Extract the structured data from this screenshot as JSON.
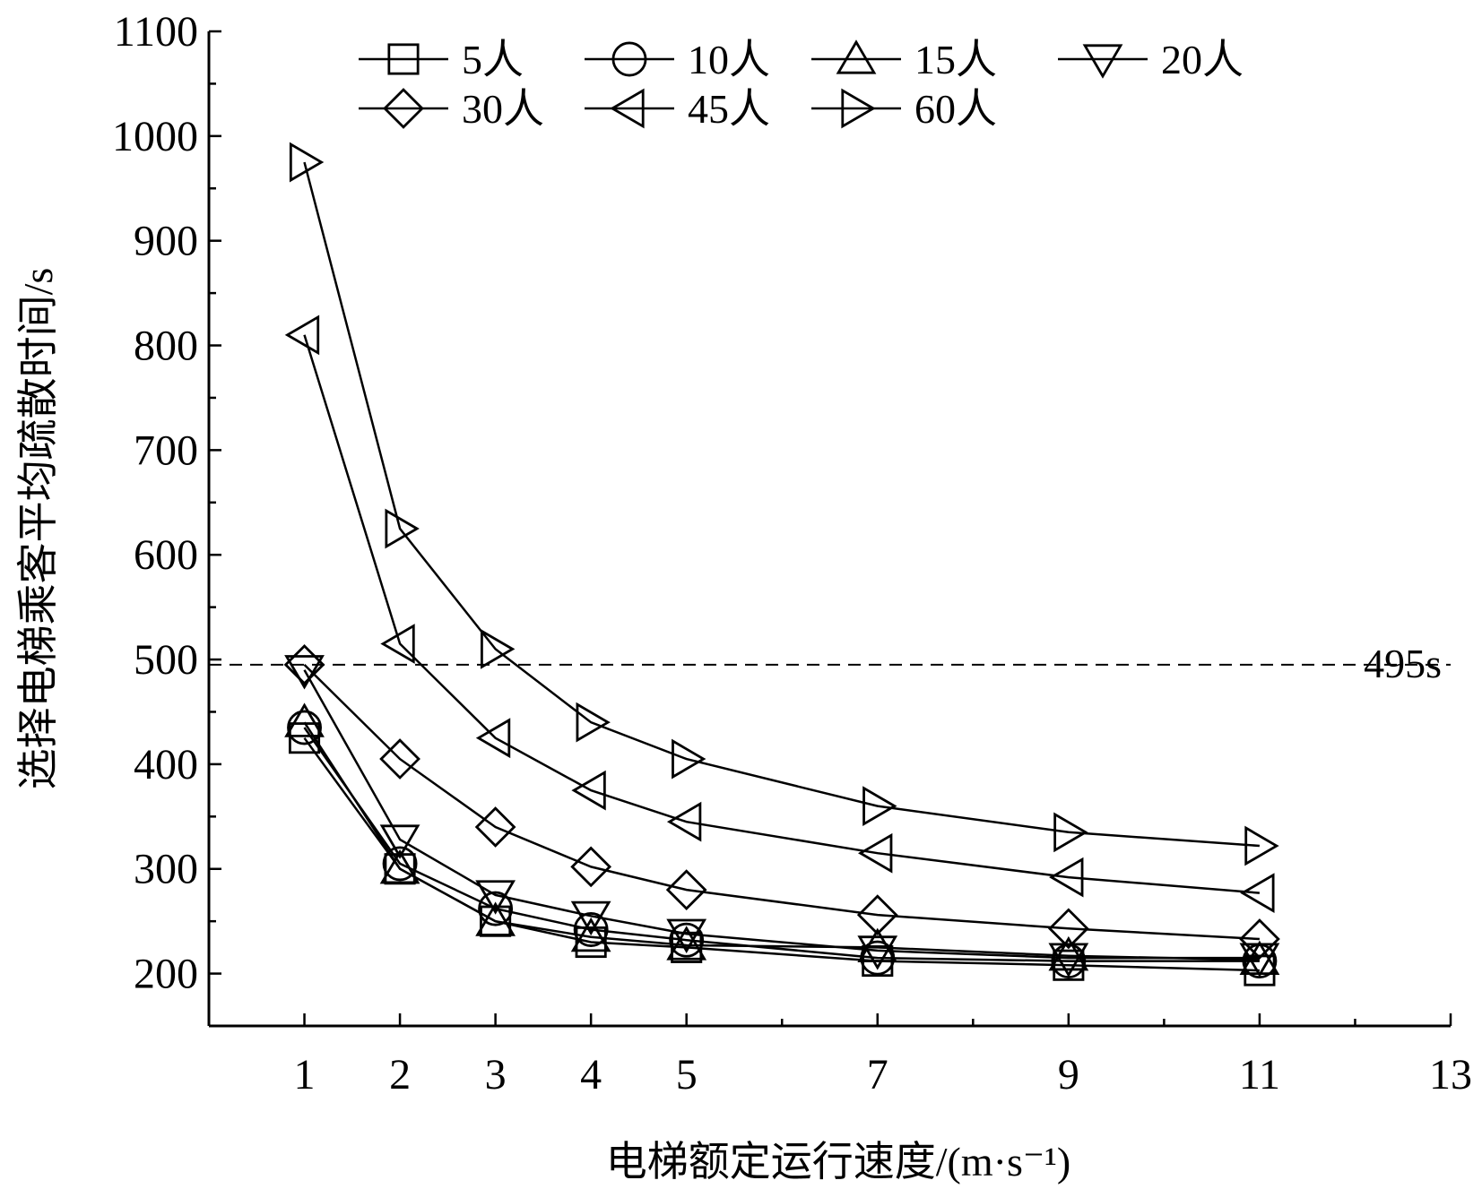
{
  "chart_data": {
    "type": "line",
    "title": "",
    "xlabel": "电梯额定运行速度/(m·s⁻¹)",
    "ylabel": "选择电梯乘客平均疏散时间/s",
    "xlim": [
      0,
      13
    ],
    "ylim": [
      150,
      1100
    ],
    "x_ticks": [
      1,
      2,
      3,
      4,
      5,
      7,
      9,
      11,
      13
    ],
    "y_ticks": [
      200,
      300,
      400,
      500,
      600,
      700,
      800,
      900,
      1000,
      1100
    ],
    "x": [
      1,
      2,
      3,
      4,
      5,
      7,
      9,
      11
    ],
    "grid": false,
    "legend_position": "top",
    "reference_line": {
      "y": 495,
      "label": "495s",
      "style": "dashed"
    },
    "series": [
      {
        "name": "5人",
        "marker": "square",
        "values": [
          425,
          300,
          250,
          230,
          225,
          212,
          208,
          203
        ]
      },
      {
        "name": "10人",
        "marker": "circle",
        "values": [
          435,
          305,
          262,
          242,
          232,
          215,
          212,
          212
        ]
      },
      {
        "name": "15人",
        "marker": "triangle-up",
        "values": [
          440,
          300,
          250,
          235,
          227,
          225,
          217,
          213
        ]
      },
      {
        "name": "20人",
        "marker": "triangle-down",
        "values": [
          490,
          328,
          275,
          255,
          238,
          222,
          215,
          215
        ]
      },
      {
        "name": "30人",
        "marker": "diamond",
        "values": [
          495,
          405,
          340,
          302,
          280,
          256,
          243,
          233
        ]
      },
      {
        "name": "45人",
        "marker": "triangle-left",
        "values": [
          810,
          515,
          425,
          375,
          345,
          315,
          292,
          277
        ]
      },
      {
        "name": "60人",
        "marker": "triangle-right",
        "values": [
          975,
          625,
          510,
          440,
          405,
          360,
          335,
          322
        ]
      }
    ]
  }
}
